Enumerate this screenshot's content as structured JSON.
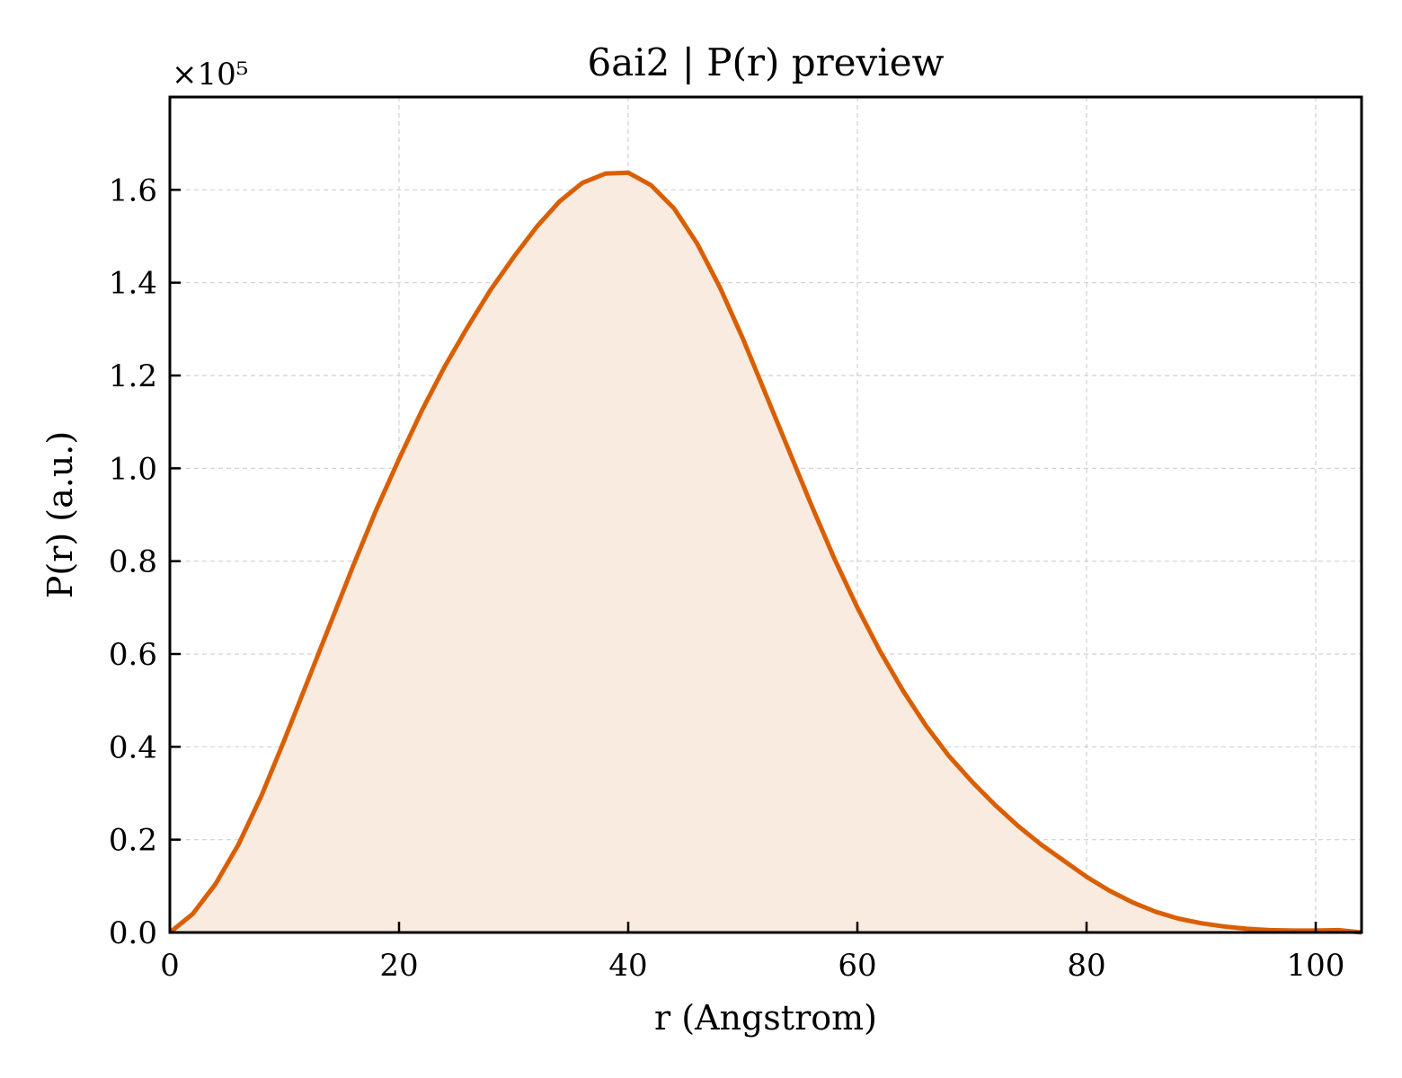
{
  "chart_data": {
    "type": "area",
    "title": "6ai2 | P(r) preview",
    "xlabel": "r (Angstrom)",
    "ylabel": "P(r) (a.u.)",
    "y_offset_label": "×10⁵",
    "xlim": [
      0,
      104
    ],
    "ylim": [
      0,
      1.8
    ],
    "xticks": [
      0,
      20,
      40,
      60,
      80,
      100
    ],
    "xtick_labels": [
      "0",
      "20",
      "40",
      "60",
      "80",
      "100"
    ],
    "yticks": [
      0,
      0.2,
      0.4,
      0.6,
      0.8,
      1.0,
      1.2,
      1.4,
      1.6
    ],
    "ytick_labels": [
      "0.0",
      "0.2",
      "0.4",
      "0.6",
      "0.8",
      "1.0",
      "1.2",
      "1.4",
      "1.6"
    ],
    "grid": true,
    "series": [
      {
        "color": "#d95f02",
        "fill_color": "#f9ebe0",
        "x": [
          0,
          2,
          4,
          6,
          8,
          10,
          12,
          14,
          16,
          18,
          20,
          22,
          24,
          26,
          28,
          30,
          32,
          34,
          36,
          38,
          40,
          42,
          44,
          46,
          48,
          50,
          52,
          54,
          56,
          58,
          60,
          62,
          64,
          66,
          68,
          70,
          72,
          74,
          76,
          78,
          80,
          82,
          84,
          86,
          88,
          90,
          92,
          94,
          96,
          98,
          100,
          102,
          104
        ],
        "y": [
          0.0,
          0.04,
          0.105,
          0.19,
          0.295,
          0.415,
          0.54,
          0.665,
          0.79,
          0.91,
          1.02,
          1.125,
          1.22,
          1.305,
          1.385,
          1.455,
          1.52,
          1.575,
          1.615,
          1.635,
          1.637,
          1.61,
          1.56,
          1.485,
          1.39,
          1.28,
          1.16,
          1.04,
          0.92,
          0.805,
          0.7,
          0.605,
          0.52,
          0.445,
          0.38,
          0.325,
          0.275,
          0.23,
          0.19,
          0.155,
          0.12,
          0.09,
          0.065,
          0.045,
          0.03,
          0.02,
          0.013,
          0.008,
          0.005,
          0.004,
          0.004,
          0.005,
          0.0
        ]
      }
    ]
  }
}
